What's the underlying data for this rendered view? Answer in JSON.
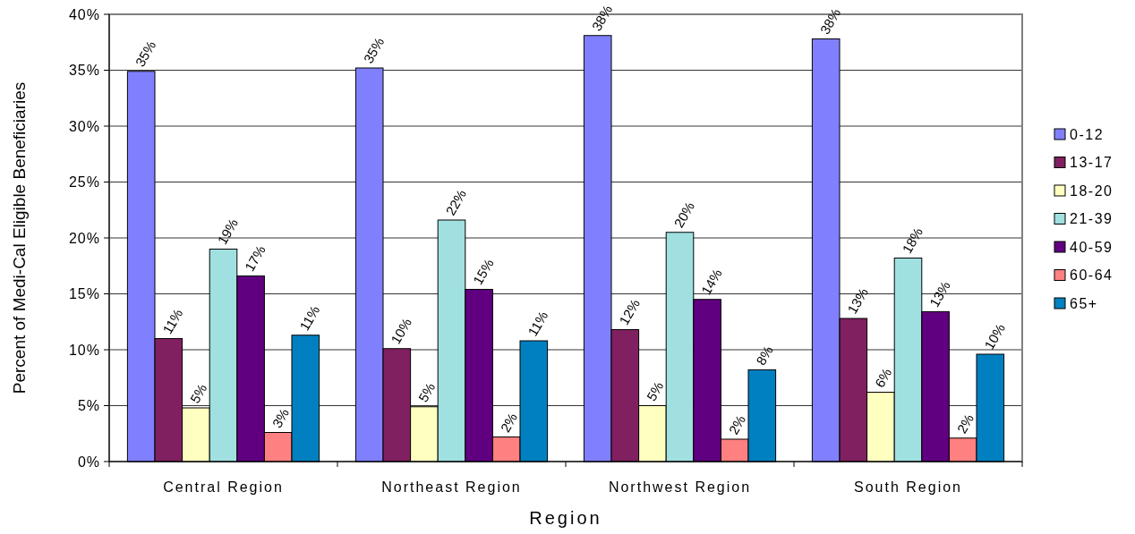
{
  "chart_data": {
    "type": "bar",
    "xlabel": "Region",
    "ylabel": "Percent of Medi-Cal Eligible Beneficiaries",
    "categories": [
      "Central Region",
      "Northeast Region",
      "Northwest Region",
      "South Region"
    ],
    "series": [
      {
        "name": "0-12",
        "color": "#8080ff",
        "values": [
          34.9,
          35.2,
          38.1,
          37.8
        ],
        "value_labels": [
          "35%",
          "35%",
          "38%",
          "38%"
        ]
      },
      {
        "name": "13-17",
        "color": "#802060",
        "values": [
          11.0,
          10.1,
          11.8,
          12.8
        ],
        "value_labels": [
          "11%",
          "10%",
          "12%",
          "13%"
        ]
      },
      {
        "name": "18-20",
        "color": "#ffffc0",
        "values": [
          4.8,
          4.9,
          5.0,
          6.2
        ],
        "value_labels": [
          "5%",
          "5%",
          "5%",
          "6%"
        ]
      },
      {
        "name": "21-39",
        "color": "#a0e0e0",
        "values": [
          19.0,
          21.6,
          20.5,
          18.2
        ],
        "value_labels": [
          "19%",
          "22%",
          "20%",
          "18%"
        ]
      },
      {
        "name": "40-59",
        "color": "#600080",
        "values": [
          16.6,
          15.4,
          14.5,
          13.4
        ],
        "value_labels": [
          "17%",
          "15%",
          "14%",
          "13%"
        ]
      },
      {
        "name": "60-64",
        "color": "#ff8080",
        "values": [
          2.6,
          2.2,
          2.0,
          2.1
        ],
        "value_labels": [
          "3%",
          "2%",
          "2%",
          "2%"
        ]
      },
      {
        "name": "65+",
        "color": "#0080c0",
        "values": [
          11.3,
          10.8,
          8.2,
          9.6
        ],
        "value_labels": [
          "11%",
          "11%",
          "8%",
          "10%"
        ]
      }
    ],
    "ylim": [
      0,
      40
    ],
    "yticks": [
      {
        "value": 0,
        "label": "0%"
      },
      {
        "value": 5,
        "label": "5%"
      },
      {
        "value": 10,
        "label": "10%"
      },
      {
        "value": 15,
        "label": "15%"
      },
      {
        "value": 20,
        "label": "20%"
      },
      {
        "value": 25,
        "label": "25%"
      },
      {
        "value": 30,
        "label": "30%"
      },
      {
        "value": 35,
        "label": "35%"
      },
      {
        "value": 40,
        "label": "40%"
      }
    ],
    "grid": "y",
    "legend": "right"
  }
}
